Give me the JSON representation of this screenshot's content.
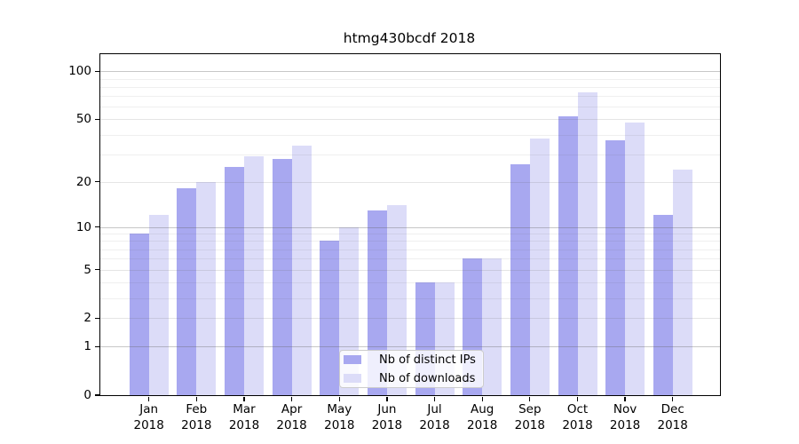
{
  "title": "htmg430bcdf 2018",
  "chart_data": {
    "type": "bar",
    "title": "htmg430bcdf 2018",
    "categories": [
      "Jan 2018",
      "Feb 2018",
      "Mar 2018",
      "Apr 2018",
      "May 2018",
      "Jun 2018",
      "Jul 2018",
      "Aug 2018",
      "Sep 2018",
      "Oct 2018",
      "Nov 2018",
      "Dec 2018"
    ],
    "series": [
      {
        "name": "Nb of distinct IPs",
        "color": "#a8a8f0",
        "values": [
          9,
          18,
          25,
          28,
          8,
          13,
          4,
          6,
          26,
          52,
          37,
          12
        ]
      },
      {
        "name": "Nb of downloads",
        "color": "#dcdcf8",
        "values": [
          12,
          20,
          29,
          34,
          10,
          14,
          4,
          6,
          38,
          74,
          48,
          24
        ]
      }
    ],
    "xlabel": "",
    "ylabel": "",
    "yscale": "log1p",
    "ylim": [
      0,
      128
    ],
    "y_ticks": [
      0,
      1,
      2,
      5,
      10,
      20,
      50,
      100
    ],
    "y_minor_gridlines": [
      3,
      4,
      6,
      7,
      8,
      9,
      30,
      40,
      60,
      70,
      80,
      90
    ],
    "grid": true,
    "legend_position": "lower center"
  }
}
